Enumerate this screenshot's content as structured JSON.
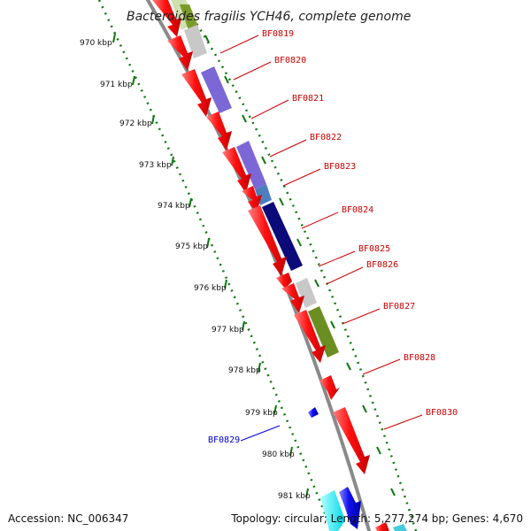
{
  "title": "Bacteroides fragilis YCH46, complete genome",
  "ticks": [
    "970 kbp",
    "971 kbp",
    "972 kbp",
    "973 kbp",
    "974 kbp",
    "975 kbp",
    "976 kbp",
    "977 kbp",
    "978 kbp",
    "979 kbp",
    "980 kbp",
    "981 kbp"
  ],
  "gene_labels": [
    {
      "text": "BF0819",
      "color": "#cc0000"
    },
    {
      "text": "BF0820",
      "color": "#cc0000"
    },
    {
      "text": "BF0821",
      "color": "#cc0000"
    },
    {
      "text": "BF0822",
      "color": "#cc0000"
    },
    {
      "text": "BF0823",
      "color": "#cc0000"
    },
    {
      "text": "BF0824",
      "color": "#cc0000"
    },
    {
      "text": "BF0825",
      "color": "#cc0000"
    },
    {
      "text": "BF0826",
      "color": "#cc0000"
    },
    {
      "text": "BF0827",
      "color": "#cc0000"
    },
    {
      "text": "BF0828",
      "color": "#cc0000"
    },
    {
      "text": "BF0830",
      "color": "#cc0000"
    },
    {
      "text": "BF0829",
      "color": "#0000cc"
    }
  ],
  "footer": {
    "accession": "Accession: NC_006347",
    "summary": "Topology: circular; Length: 5,277,274 bp; Genes: 4,670"
  },
  "colors": {
    "cds_forward": "#ee1111",
    "cds_reverse": "#1111ee",
    "backbone": "#8a8a8a",
    "tick_ring": "#117711"
  }
}
